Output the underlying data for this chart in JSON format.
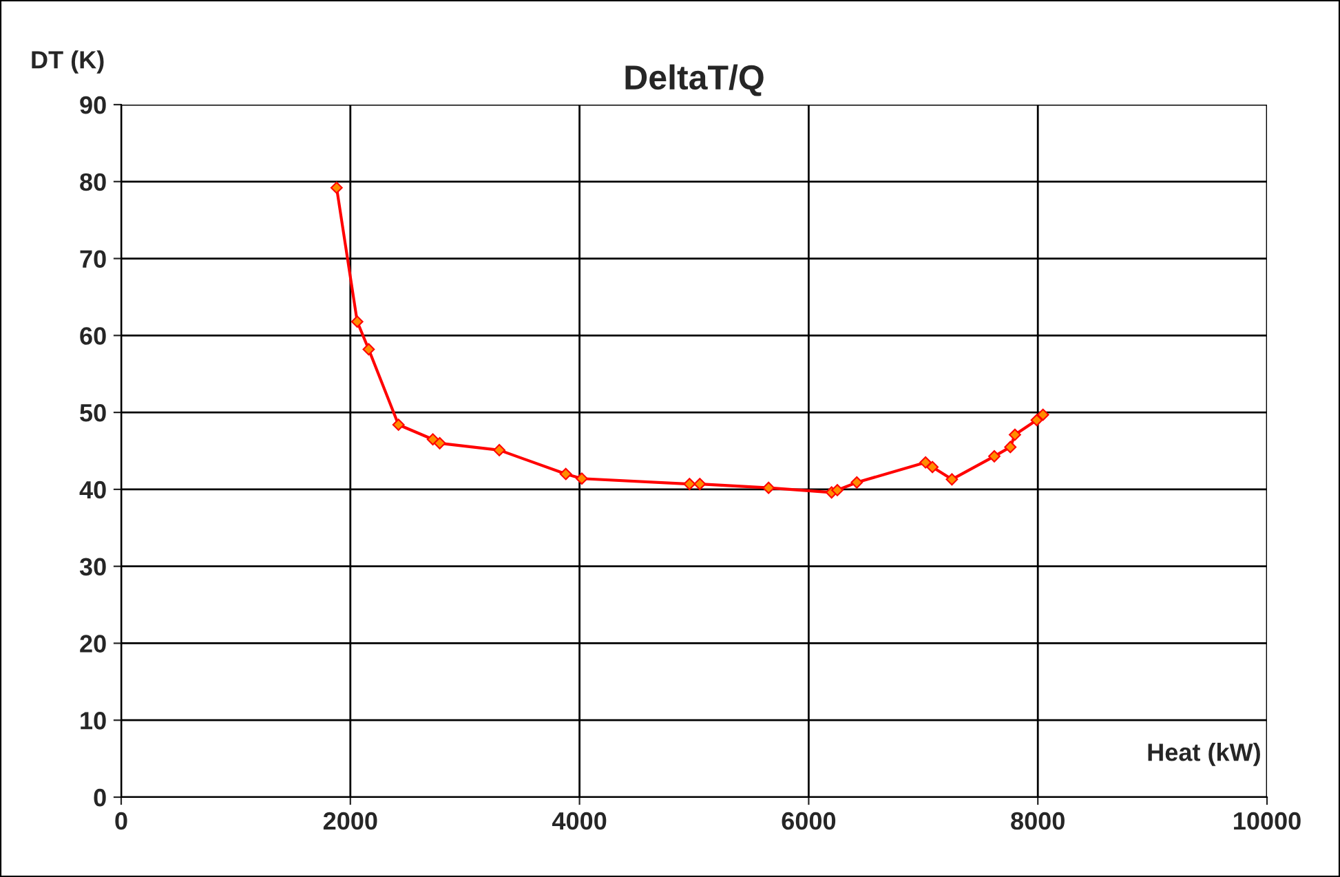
{
  "chart_data": {
    "type": "line",
    "title": "DeltaT/Q",
    "xlabel": "Heat (kW)",
    "ylabel": "DT (K)",
    "x": [
      1880,
      2060,
      2160,
      2420,
      2720,
      2780,
      3300,
      3880,
      4020,
      4960,
      5050,
      5650,
      6200,
      6250,
      6420,
      7020,
      7080,
      7250,
      7620,
      7760,
      7800,
      7990,
      8045
    ],
    "series": [
      {
        "color": "#ff0000",
        "values": [
          79.2,
          61.8,
          58.2,
          48.4,
          46.5,
          46.0,
          45.1,
          42.0,
          41.4,
          40.7,
          40.7,
          40.2,
          39.6,
          39.9,
          40.9,
          43.5,
          42.9,
          41.3,
          44.3,
          45.5,
          47.1,
          49.0,
          49.7
        ]
      }
    ],
    "xlim": [
      0,
      10000
    ],
    "xticks": [
      0,
      2000,
      4000,
      6000,
      8000,
      10000
    ],
    "ylim": [
      0,
      90
    ],
    "yticks": [
      0,
      10,
      20,
      30,
      40,
      50,
      60,
      70,
      80,
      90
    ],
    "grid": true,
    "marker": "diamond",
    "line_style": "solid"
  }
}
